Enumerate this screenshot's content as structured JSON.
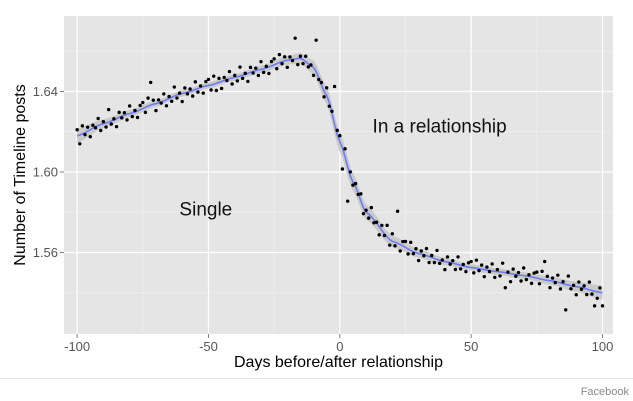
{
  "chart_data": {
    "type": "scatter",
    "xlabel": "Days before/after relationship",
    "ylabel": "Number of Timeline posts",
    "xlim": [
      -105,
      104
    ],
    "ylim": [
      1.5195,
      1.6775
    ],
    "x_ticks": [
      -100,
      -50,
      0,
      50,
      100
    ],
    "x_tick_labels": [
      "-100",
      "-50",
      "0",
      "50",
      "100"
    ],
    "y_ticks": [
      1.56,
      1.6,
      1.64
    ],
    "y_tick_labels": [
      "1.56",
      "1.60",
      "1.64"
    ],
    "grid": true,
    "annotations": [
      {
        "text": "Single",
        "x": -51,
        "y": 1.5785
      },
      {
        "text": "In a relationship",
        "x": 38,
        "y": 1.6195
      }
    ],
    "colors": {
      "panel": "#e5e5e5",
      "grid": "#ffffff",
      "points": "#000000",
      "smooth_line": "#6c7cf4",
      "ribbon": "#c5c5c5"
    },
    "smooth": {
      "x": [
        -100,
        -90,
        -80,
        -70,
        -60,
        -50,
        -40,
        -30,
        -20,
        -15,
        -10,
        -5,
        0,
        5,
        10,
        20,
        30,
        40,
        50,
        60,
        70,
        80,
        90,
        100
      ],
      "y": [
        1.618,
        1.624,
        1.629,
        1.634,
        1.639,
        1.643,
        1.647,
        1.651,
        1.6555,
        1.6565,
        1.652,
        1.638,
        1.615,
        1.595,
        1.58,
        1.5655,
        1.5595,
        1.5555,
        1.5525,
        1.5505,
        1.5485,
        1.546,
        1.543,
        1.54
      ],
      "band": [
        0.0035,
        0.0022,
        0.0018,
        0.0016,
        0.0015,
        0.0015,
        0.0016,
        0.0018,
        0.0022,
        0.0026,
        0.0035,
        0.0045,
        0.005,
        0.0045,
        0.0038,
        0.0028,
        0.0022,
        0.0018,
        0.0016,
        0.0016,
        0.0017,
        0.002,
        0.0025,
        0.0035
      ]
    },
    "noise": [
      0.003,
      -0.0025,
      0.004,
      -0.001,
      0.002,
      -0.0035,
      0.0015,
      -0.0005,
      0.0035,
      -0.003,
      0.001,
      -0.002,
      0.0045,
      -0.0015,
      0.0005,
      -0.004,
      0.0025,
      -0.0008,
      0.0012,
      -0.0028,
      0.0038,
      -0.0018,
      0.0008,
      -0.0032,
      0.0022
    ],
    "outliers": [
      {
        "x": -99,
        "y": 1.614
      },
      {
        "x": -88,
        "y": 1.631
      },
      {
        "x": -72,
        "y": 1.6445
      },
      {
        "x": -47,
        "y": 1.6405
      },
      {
        "x": -17,
        "y": 1.6665
      },
      {
        "x": -9,
        "y": 1.6655
      },
      {
        "x": -13,
        "y": 1.6575
      },
      {
        "x": -2,
        "y": 1.6425
      },
      {
        "x": 1,
        "y": 1.6015
      },
      {
        "x": 3,
        "y": 1.5855
      },
      {
        "x": 5,
        "y": 1.5935
      },
      {
        "x": 18,
        "y": 1.5735
      },
      {
        "x": 22,
        "y": 1.5805
      },
      {
        "x": 48,
        "y": 1.5505
      },
      {
        "x": 63,
        "y": 1.5425
      },
      {
        "x": 78,
        "y": 1.5555
      },
      {
        "x": 86,
        "y": 1.5315
      },
      {
        "x": 97,
        "y": 1.5335
      },
      {
        "x": 100,
        "y": 1.5335
      }
    ]
  },
  "credit": "Facebook"
}
